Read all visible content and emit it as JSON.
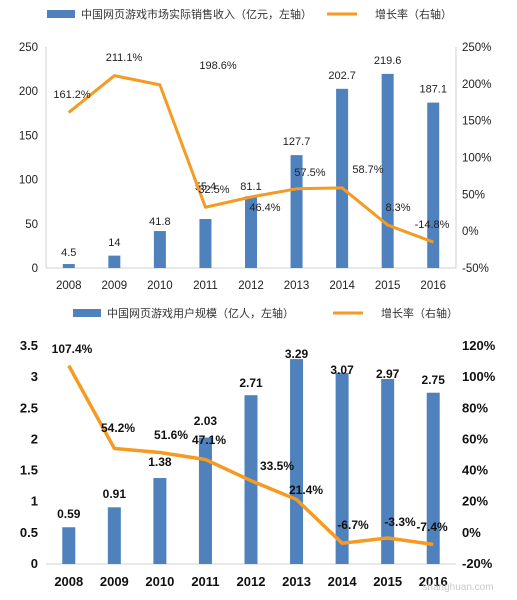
{
  "chart_data": [
    {
      "type": "bar",
      "legend": {
        "bar": "中国网页游戏市场实际销售收入（亿元，左轴）",
        "line": "增长率（右轴）",
        "placement": "top"
      },
      "categories": [
        "2008",
        "2009",
        "2010",
        "2011",
        "2012",
        "2013",
        "2014",
        "2015",
        "2016"
      ],
      "series": [
        {
          "name": "中国网页游戏市场实际销售收入（亿元，左轴）",
          "type": "bar",
          "axis": "left",
          "values": [
            4.5,
            14,
            41.8,
            55.4,
            81.1,
            127.7,
            202.7,
            219.6,
            187.1
          ],
          "labels": [
            "4.5",
            "14",
            "41.8",
            "55.4",
            "81.1",
            "127.7",
            "202.7",
            "219.6",
            "187.1"
          ]
        },
        {
          "name": "增长率（右轴）",
          "type": "line",
          "axis": "right",
          "values": [
            161.2,
            211.1,
            198.6,
            32.5,
            46.4,
            57.5,
            58.7,
            8.3,
            -14.8
          ],
          "labels": [
            "161.2%",
            "211.1%",
            "198.6%",
            "32.5%",
            "46.4%",
            "57.5%",
            "58.7%",
            "8.3%",
            "-14.8%"
          ]
        }
      ],
      "ylim_left": [
        0,
        250
      ],
      "yticks_left": [
        "0",
        "50",
        "100",
        "150",
        "200",
        "250"
      ],
      "ylim_right": [
        -50,
        250
      ],
      "yticks_right": [
        "-50%",
        "0%",
        "50%",
        "100%",
        "150%",
        "200%",
        "250%"
      ],
      "grid": false,
      "colors": {
        "bar": "#4f81bd",
        "line": "#f59a23"
      }
    },
    {
      "type": "bar",
      "legend": {
        "bar": "中国网页游戏用户规模（亿人，左轴）",
        "line": "增长率（右轴）",
        "placement": "top"
      },
      "categories": [
        "2008",
        "2009",
        "2010",
        "2011",
        "2012",
        "2013",
        "2014",
        "2015",
        "2016"
      ],
      "series": [
        {
          "name": "中国网页游戏用户规模（亿人，左轴）",
          "type": "bar",
          "axis": "left",
          "values": [
            0.59,
            0.91,
            1.38,
            2.03,
            2.71,
            3.29,
            3.07,
            2.97,
            2.75
          ],
          "labels": [
            "0.59",
            "0.91",
            "1.38",
            "2.03",
            "2.71",
            "3.29",
            "3.07",
            "2.97",
            "2.75"
          ]
        },
        {
          "name": "增长率（右轴）",
          "type": "line",
          "axis": "right",
          "values": [
            107.4,
            54.2,
            51.6,
            47.1,
            33.5,
            21.4,
            -6.7,
            -3.3,
            -7.4
          ],
          "labels": [
            "107.4%",
            "54.2%",
            "51.6%",
            "47.1%",
            "33.5%",
            "21.4%",
            "-6.7%",
            "-3.3%",
            "-7.4%"
          ]
        }
      ],
      "ylim_left": [
        0,
        3.5
      ],
      "yticks_left": [
        "0",
        "0.5",
        "1",
        "1.5",
        "2",
        "2.5",
        "3",
        "3.5"
      ],
      "ylim_right": [
        -20,
        120
      ],
      "yticks_right": [
        "-20%",
        "0%",
        "20%",
        "40%",
        "60%",
        "80%",
        "100%",
        "120%"
      ],
      "grid": false,
      "colors": {
        "bar": "#4f81bd",
        "line": "#f59a23"
      }
    }
  ],
  "watermark": "shanghuan.com"
}
